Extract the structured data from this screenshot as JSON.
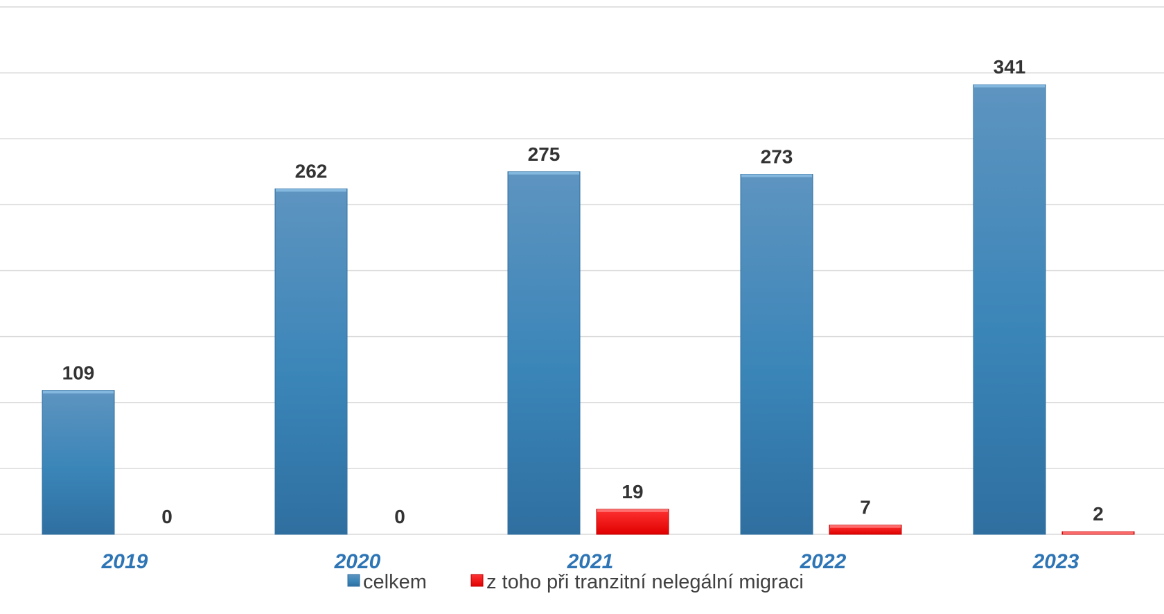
{
  "chart_data": {
    "type": "bar",
    "categories": [
      "2019",
      "2020",
      "2021",
      "2022",
      "2023"
    ],
    "series": [
      {
        "name": "celkem",
        "values": [
          109,
          262,
          275,
          273,
          341
        ],
        "color": "#3a85b8"
      },
      {
        "name": "z toho při tranzitní nelegální migraci",
        "values": [
          0,
          0,
          19,
          7,
          2
        ],
        "color": "#ff0000"
      }
    ],
    "ylim": [
      0,
      400
    ],
    "y_gridline_step": 50,
    "y_tick_labels_visible": false,
    "grid": true,
    "legend": "bottom",
    "category_label_color": "#2e75b6",
    "value_label_color": "#333333",
    "gridline_color": "#d9d9d9"
  }
}
